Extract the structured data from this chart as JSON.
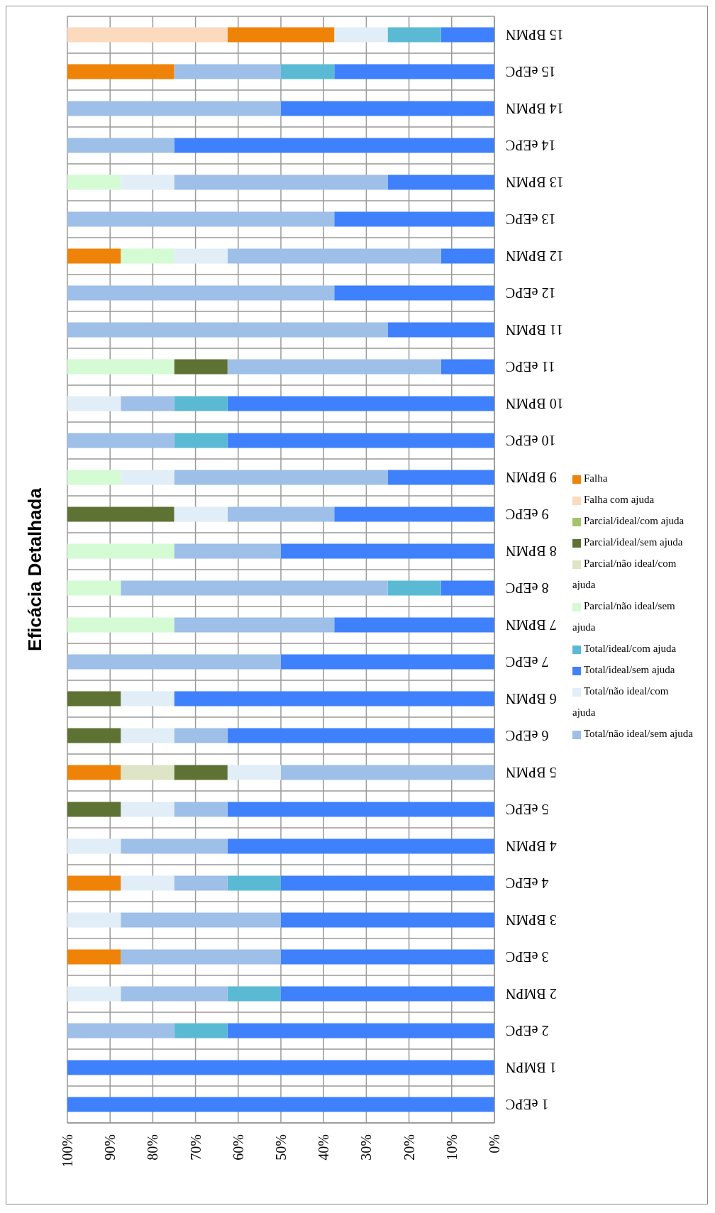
{
  "chart_data": {
    "type": "bar",
    "title": "Eficácia Detalhada",
    "orientation": "horizontal",
    "stacked": true,
    "grid": true,
    "legend": "right",
    "categories": [
      "15 BPMN",
      "15 eEPC",
      "14 BPMN",
      "14 eEPC",
      "13 BPMN",
      "13 eEPC",
      "12 BPMN",
      "12 eEPC",
      "11 BPMN",
      "11 eEPC",
      "10 BPMN",
      "10 eEPC",
      "9 BPMN",
      "9 eEPC",
      "8 BPMN",
      "8 eEPC",
      "7 BPMN",
      "7 eEPC",
      "6 BPMN",
      "6 eEPC",
      "5 BPMN",
      "5 eEPC",
      "4 BPMN",
      "4 eEPC",
      "3 BPMN",
      "3 eEPC",
      "2 BMPN",
      "2 eEPC",
      "1 BMPN",
      "1 eEPC"
    ],
    "xlim": [
      100,
      0
    ],
    "xticks": [
      {
        "value": 100,
        "label": "100%"
      },
      {
        "value": 90,
        "label": "90%"
      },
      {
        "value": 80,
        "label": "80%"
      },
      {
        "value": 70,
        "label": "70%"
      },
      {
        "value": 60,
        "label": "60%"
      },
      {
        "value": 50,
        "label": "50%"
      },
      {
        "value": 40,
        "label": "40%"
      },
      {
        "value": 30,
        "label": "30%"
      },
      {
        "value": 20,
        "label": "20%"
      },
      {
        "value": 10,
        "label": "10%"
      },
      {
        "value": 0,
        "label": "0%"
      }
    ],
    "series": [
      {
        "name": "Total/ideal/sem ajuda",
        "color": "#3f81fc",
        "values": [
          12.5,
          37.5,
          50,
          75,
          25,
          37.5,
          12.5,
          37.5,
          25,
          12.5,
          62.5,
          62.5,
          25,
          37.5,
          50,
          12.5,
          37.5,
          50,
          75,
          62.5,
          0,
          62.5,
          62.5,
          50,
          50,
          50,
          50,
          62.5,
          100,
          100
        ]
      },
      {
        "name": "Total/ideal/com ajuda",
        "color": "#5bbad3",
        "values": [
          12.5,
          12.5,
          0,
          0,
          0,
          0,
          0,
          0,
          0,
          0,
          12.5,
          12.5,
          0,
          0,
          0,
          12.5,
          0,
          0,
          0,
          0,
          0,
          0,
          0,
          12.5,
          0,
          0,
          12.5,
          12.5,
          0,
          0
        ]
      },
      {
        "name": "Total/não ideal/sem ajuda",
        "color": "#9dbfe8",
        "values": [
          0,
          25,
          50,
          25,
          50,
          62.5,
          50,
          62.5,
          75,
          50,
          12.5,
          25,
          50,
          25,
          25,
          62.5,
          37.5,
          50,
          0,
          12.5,
          50,
          12.5,
          25,
          12.5,
          37.5,
          37.5,
          25,
          25,
          0,
          0
        ]
      },
      {
        "name": "Total/não ideal/com ajuda",
        "color": "#e1eef8",
        "values": [
          12.5,
          0,
          0,
          0,
          12.5,
          0,
          12.5,
          0,
          0,
          0,
          12.5,
          0,
          12.5,
          12.5,
          0,
          0,
          0,
          0,
          12.5,
          12.5,
          12.5,
          12.5,
          12.5,
          12.5,
          12.5,
          0,
          12.5,
          0,
          0,
          0
        ]
      },
      {
        "name": "Parcial/ideal/sem ajuda",
        "color": "#5e7234",
        "values": [
          0,
          0,
          0,
          0,
          0,
          0,
          0,
          0,
          0,
          12.5,
          0,
          0,
          0,
          25,
          0,
          0,
          0,
          0,
          12.5,
          12.5,
          12.5,
          12.5,
          0,
          0,
          0,
          0,
          0,
          0,
          0,
          0
        ]
      },
      {
        "name": "Parcial/ideal/com ajuda",
        "color": "#a3c46a",
        "values": [
          0,
          0,
          0,
          0,
          0,
          0,
          0,
          0,
          0,
          0,
          0,
          0,
          0,
          0,
          0,
          0,
          0,
          0,
          0,
          0,
          0,
          0,
          0,
          0,
          0,
          0,
          0,
          0,
          0,
          0
        ]
      },
      {
        "name": "Parcial/não ideal/sem ajuda",
        "color": "#d4fbd4",
        "values": [
          0,
          0,
          0,
          0,
          12.5,
          0,
          12.5,
          0,
          0,
          25,
          0,
          0,
          12.5,
          0,
          25,
          12.5,
          25,
          0,
          0,
          0,
          0,
          0,
          0,
          0,
          0,
          0,
          0,
          0,
          0,
          0
        ]
      },
      {
        "name": "Parcial/não ideal/com ajuda",
        "color": "#dde5c6",
        "values": [
          0,
          0,
          0,
          0,
          0,
          0,
          0,
          0,
          0,
          0,
          0,
          0,
          0,
          0,
          0,
          0,
          0,
          0,
          0,
          0,
          12.5,
          0,
          0,
          0,
          0,
          0,
          0,
          0,
          0,
          0
        ]
      },
      {
        "name": "Falha",
        "color": "#ef8308",
        "values": [
          25,
          25,
          0,
          0,
          0,
          0,
          12.5,
          0,
          0,
          0,
          0,
          0,
          0,
          0,
          0,
          0,
          0,
          0,
          0,
          0,
          12.5,
          0,
          0,
          12.5,
          0,
          12.5,
          0,
          0,
          0,
          0
        ]
      },
      {
        "name": "Falha com ajuda",
        "color": "#fbdabe",
        "values": [
          37.5,
          0,
          0,
          0,
          0,
          0,
          0,
          0,
          0,
          0,
          0,
          0,
          0,
          0,
          0,
          0,
          0,
          0,
          0,
          0,
          0,
          0,
          0,
          0,
          0,
          0,
          0,
          0,
          0,
          0
        ]
      }
    ]
  }
}
